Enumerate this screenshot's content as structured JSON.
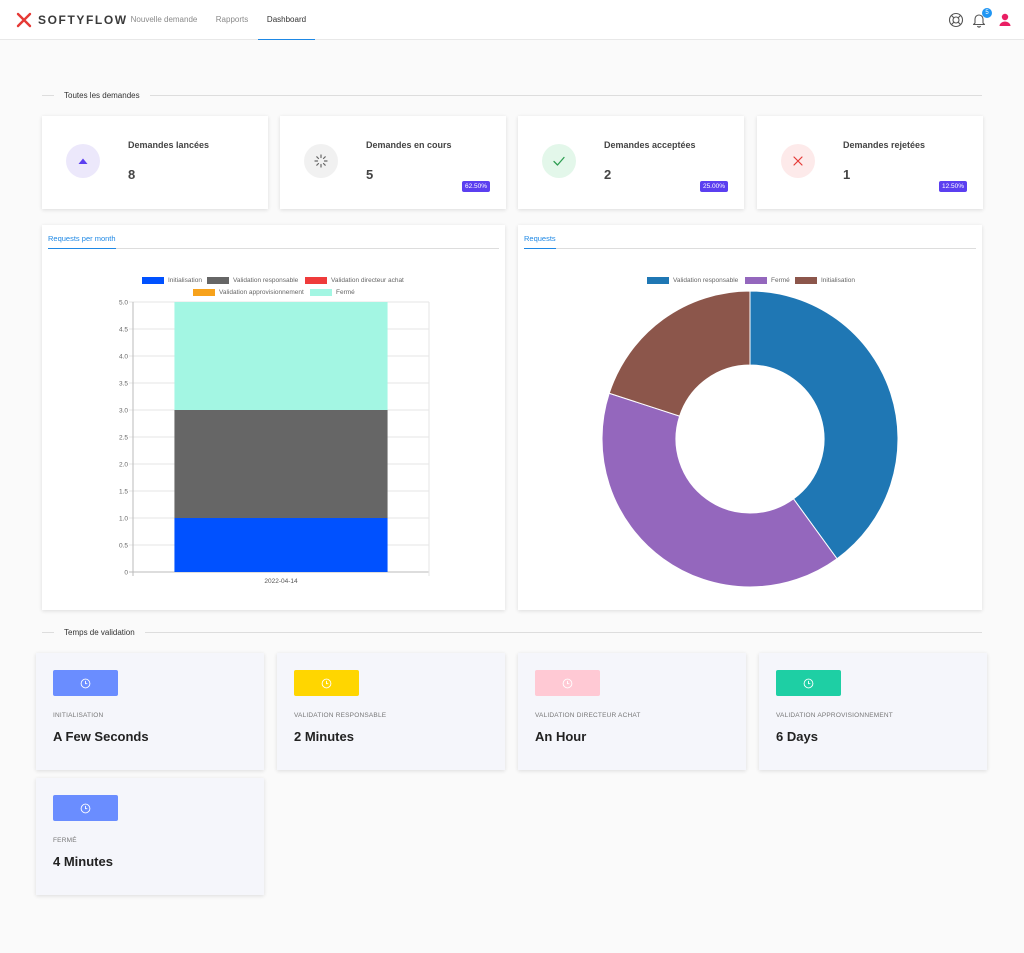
{
  "app": {
    "brand": "SOFTYFLOW",
    "nav": [
      {
        "label": "Nouvelle demande"
      },
      {
        "label": "Rapports"
      },
      {
        "label": "Dashboard"
      }
    ],
    "notification_count": "5",
    "colors": {
      "brand": "#e53935",
      "accent": "#1e88e5",
      "user": "#e91e63"
    }
  },
  "sections": {
    "all_requests": "Toutes les demandes",
    "validation_time": "Temps de validation"
  },
  "stats": [
    {
      "label": "Demandes lancées",
      "value": "8",
      "pct": "",
      "icon": "triangle-up-icon",
      "bg": "#ece8fb",
      "fg": "#5b3ff0"
    },
    {
      "label": "Demandes en cours",
      "value": "5",
      "pct": "62.50%",
      "icon": "spinner-icon",
      "bg": "#f1f1f1",
      "fg": "#666666"
    },
    {
      "label": "Demandes acceptées",
      "value": "2",
      "pct": "25.00%",
      "icon": "check-icon",
      "bg": "#e3f7ea",
      "fg": "#2e9e52"
    },
    {
      "label": "Demandes rejetées",
      "value": "1",
      "pct": "12.50%",
      "icon": "close-icon",
      "bg": "#fdeaea",
      "fg": "#e53935"
    }
  ],
  "charts": {
    "bar_tab": "Requests per month",
    "pie_tab": "Requests"
  },
  "chart_data": [
    {
      "type": "bar",
      "stacked": true,
      "categories": [
        "2022-04-14"
      ],
      "series": [
        {
          "name": "Initialisation",
          "values": [
            1
          ],
          "color": "#0051ff"
        },
        {
          "name": "Validation responsable",
          "values": [
            2
          ],
          "color": "#666666"
        },
        {
          "name": "Validation directeur achat",
          "values": [
            0
          ],
          "color": "#ef3b3b"
        },
        {
          "name": "Validation approvisionnement",
          "values": [
            0
          ],
          "color": "#f7a21b"
        },
        {
          "name": "Fermé",
          "values": [
            2
          ],
          "color": "#a3f6e3"
        }
      ],
      "ylim": [
        0,
        5
      ],
      "yticks": [
        "0",
        "0.5",
        "1.0",
        "1.5",
        "2.0",
        "2.5",
        "3.0",
        "3.5",
        "4.0",
        "4.5",
        "5.0"
      ],
      "legend": "top",
      "grid": true
    },
    {
      "type": "pie",
      "donut": true,
      "series": [
        {
          "name": "Validation responsable",
          "value": 2,
          "color": "#1f77b4"
        },
        {
          "name": "Fermé",
          "value": 2,
          "color": "#9467bd"
        },
        {
          "name": "Initialisation",
          "value": 1,
          "color": "#8c564b"
        }
      ],
      "legend": "top"
    }
  ],
  "times": [
    {
      "label": "INITIALISATION",
      "value": "A Few Seconds",
      "color": "#6a8dff"
    },
    {
      "label": "VALIDATION RESPONSABLE",
      "value": "2 Minutes",
      "color": "#ffd600"
    },
    {
      "label": "VALIDATION DIRECTEUR ACHAT",
      "value": "An Hour",
      "color": "#ffc9d4"
    },
    {
      "label": "VALIDATION APPROVISIONNEMENT",
      "value": "6 Days",
      "color": "#1ecfa4"
    },
    {
      "label": "FERMÉ",
      "value": "4 Minutes",
      "color": "#6a8dff"
    }
  ]
}
